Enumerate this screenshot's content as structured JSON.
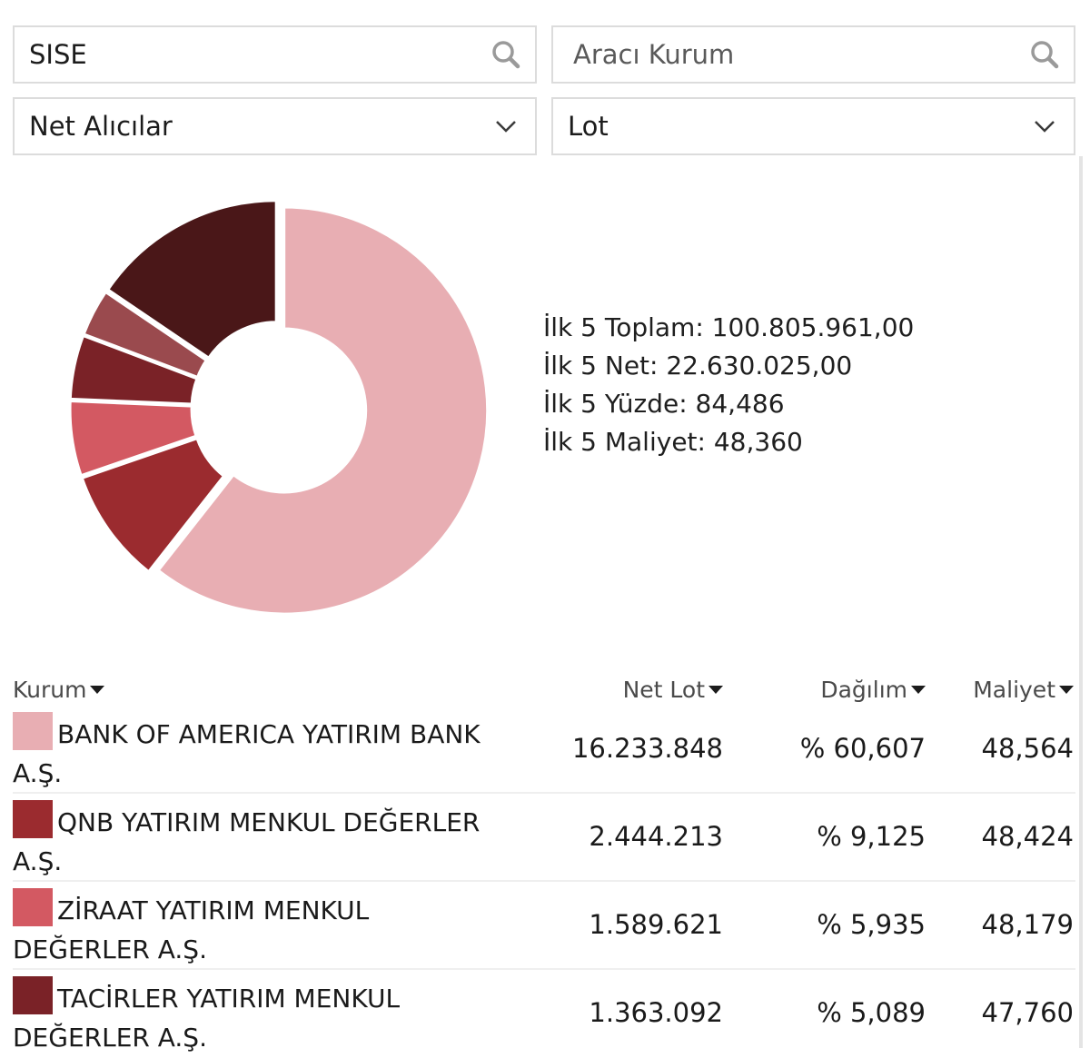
{
  "filters": {
    "symbol_search": {
      "value": "SISE"
    },
    "broker_search": {
      "placeholder": "Aracı Kurum"
    },
    "side_select": {
      "selected": "Net Alıcılar"
    },
    "unit_select": {
      "selected": "Lot"
    }
  },
  "icons": {
    "search": "search-icon",
    "dropdown": "chevron-down-icon",
    "sort": "caret-down-icon"
  },
  "summary": {
    "top5_total": "İlk 5 Toplam: 100.805.961,00",
    "top5_net": "İlk 5 Net: 22.630.025,00",
    "top5_percent": "İlk 5 Yüzde: 84,486",
    "top5_cost": "İlk 5 Maliyet: 48,360"
  },
  "chart_data": {
    "type": "pie",
    "donut": true,
    "labels": [
      "BANK OF AMERICA YATIRIM BANK A.Ş.",
      "QNB YATIRIM MENKUL DEĞERLER A.Ş.",
      "ZİRAAT YATIRIM MENKUL DEĞERLER A.Ş.",
      "TACİRLER YATIRIM MENKUL DEĞERLER A.Ş.",
      "",
      ""
    ],
    "values": [
      60.607,
      9.125,
      5.935,
      5.089,
      3.73,
      15.514
    ],
    "colors": [
      "#e8aeb3",
      "#9b2b2f",
      "#d35962",
      "#7a2227",
      "#9a4a4e",
      "#4a1718"
    ]
  },
  "table": {
    "headers": {
      "kurum": "Kurum",
      "net_lot": "Net Lot",
      "dagilim": "Dağılım",
      "maliyet": "Maliyet"
    },
    "rows": [
      {
        "name": "BANK OF AMERICA YATIRIM BANK A.Ş.",
        "net_lot": "16.233.848",
        "dagilim": "% 60,607",
        "maliyet": "48,564",
        "color": "#e8aeb3"
      },
      {
        "name": "QNB YATIRIM MENKUL DEĞERLER A.Ş.",
        "net_lot": "2.444.213",
        "dagilim": "% 9,125",
        "maliyet": "48,424",
        "color": "#9b2b2f"
      },
      {
        "name": "ZİRAAT YATIRIM MENKUL DEĞERLER A.Ş.",
        "net_lot": "1.589.621",
        "dagilim": "% 5,935",
        "maliyet": "48,179",
        "color": "#d35962"
      },
      {
        "name": "TACİRLER YATIRIM MENKUL DEĞERLER A.Ş.",
        "net_lot": "1.363.092",
        "dagilim": "% 5,089",
        "maliyet": "47,760",
        "color": "#7a2227"
      }
    ]
  }
}
